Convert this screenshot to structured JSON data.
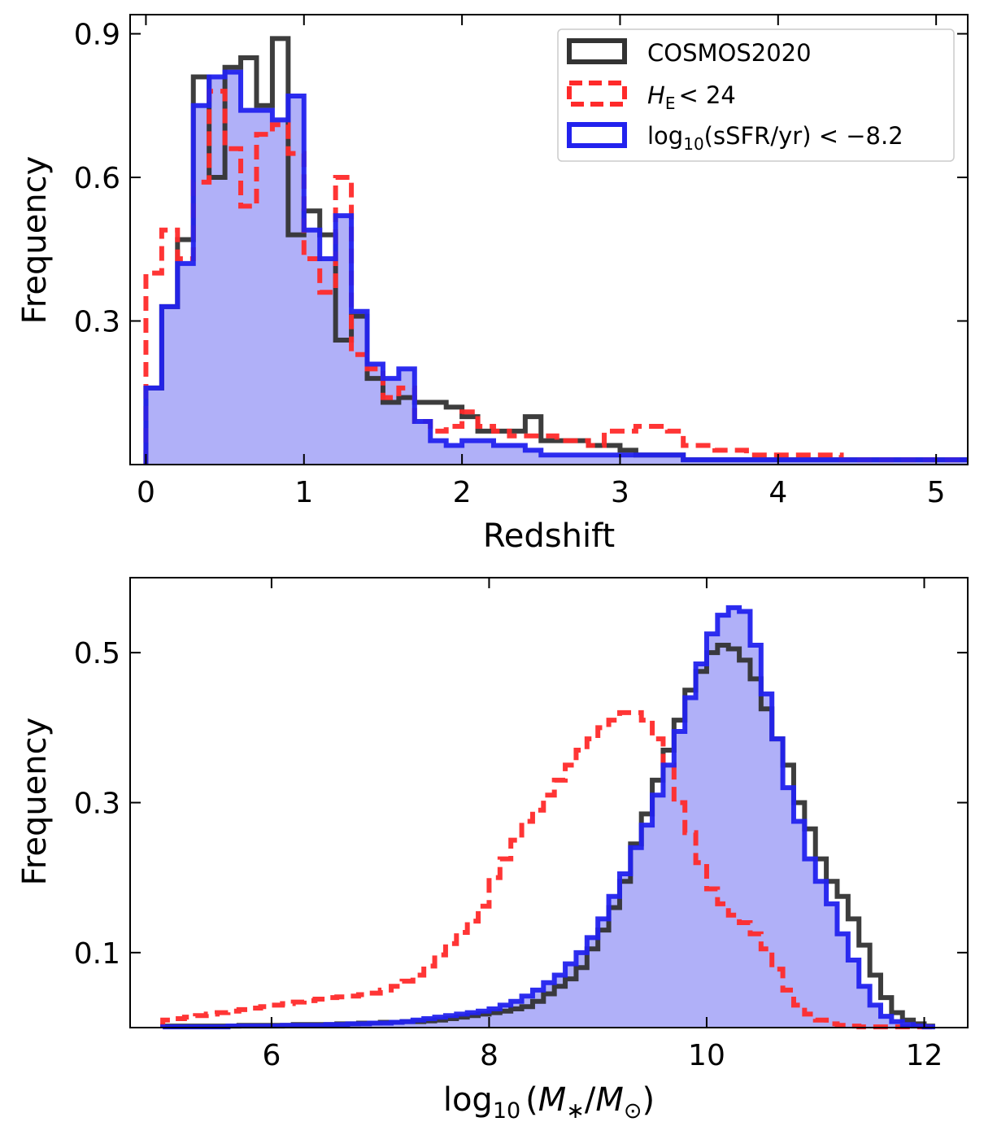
{
  "chart_data": [
    {
      "type": "histogram-step",
      "xlabel": "Redshift",
      "ylabel": "Frequency",
      "xlim": [
        -0.1,
        5.2
      ],
      "ylim": [
        0,
        0.94
      ],
      "xticks": [
        0,
        1,
        2,
        3,
        4,
        5
      ],
      "xtick_labels": [
        "0",
        "1",
        "2",
        "3",
        "4",
        "5"
      ],
      "yticks": [
        0.3,
        0.6,
        0.9
      ],
      "ytick_labels": [
        "0.3",
        "0.6",
        "0.9"
      ],
      "bin_width": 0.1,
      "bin_start": 0,
      "legend": {
        "placement": "top-right",
        "entries": [
          {
            "key": "cosmos",
            "label": "COSMOS2020"
          },
          {
            "key": "he",
            "label_main": "H",
            "label_sub": "E",
            "label_tail": "< 24"
          },
          {
            "key": "ssfr",
            "label_main": "log",
            "label_sub": "10",
            "label_tail": "(sSFR/yr) < −8.2"
          }
        ]
      },
      "series": [
        {
          "name": "COSMOS2020",
          "key": "cosmos",
          "color": "#333333",
          "style": "solid",
          "values": [
            0.16,
            0.33,
            0.47,
            0.81,
            0.6,
            0.83,
            0.85,
            0.75,
            0.89,
            0.48,
            0.53,
            0.48,
            0.26,
            0.31,
            0.18,
            0.13,
            0.14,
            0.13,
            0.13,
            0.12,
            0.1,
            0.07,
            0.07,
            0.07,
            0.1,
            0.05,
            0.05,
            0.05,
            0.04,
            0.04,
            0.03,
            0.02,
            0.02,
            0.02,
            0.01,
            0.01,
            0.01,
            0.01,
            0.01,
            0.01,
            0.01,
            0.01,
            0.01,
            0.01,
            0.01,
            0.01,
            0.01,
            0.01,
            0.01,
            0.01,
            0.01,
            0.01
          ]
        },
        {
          "name": "H_E < 24",
          "key": "he",
          "color": "#ff2a2a",
          "style": "dashed",
          "values": [
            0.4,
            0.49,
            0.43,
            0.59,
            0.78,
            0.66,
            0.54,
            0.69,
            0.71,
            0.65,
            0.43,
            0.36,
            0.6,
            0.23,
            0.2,
            0.14,
            0.16,
            0.09,
            0.07,
            0.08,
            0.11,
            0.08,
            0.07,
            0.06,
            0.06,
            0.06,
            0.05,
            0.05,
            0.04,
            0.07,
            0.07,
            0.08,
            0.08,
            0.07,
            0.04,
            0.04,
            0.03,
            0.03,
            0.02,
            0.02,
            0.02,
            0.02,
            0.02,
            0.02,
            0.01,
            0.01,
            0.01,
            0.01,
            0.01,
            0.01,
            0.01,
            0.01
          ]
        },
        {
          "name": "log10(sSFR/yr) < -8.2",
          "key": "ssfr",
          "color": "#2222ee",
          "style": "solid",
          "fill": "#b0b0f8",
          "values": [
            0.16,
            0.33,
            0.42,
            0.75,
            0.81,
            0.82,
            0.74,
            0.74,
            0.72,
            0.77,
            0.49,
            0.43,
            0.52,
            0.32,
            0.21,
            0.18,
            0.2,
            0.09,
            0.05,
            0.04,
            0.05,
            0.05,
            0.04,
            0.04,
            0.03,
            0.02,
            0.02,
            0.02,
            0.02,
            0.02,
            0.02,
            0.02,
            0.02,
            0.02,
            0.01,
            0.01,
            0.01,
            0.01,
            0.01,
            0.01,
            0.01,
            0.01,
            0.01,
            0.01,
            0.01,
            0.01,
            0.01,
            0.01,
            0.01,
            0.01,
            0.01,
            0.01
          ]
        }
      ]
    },
    {
      "type": "histogram-step",
      "xlabel_main": "log",
      "xlabel_sub": "10",
      "xlabel_paren_open": "(",
      "xlabel_m1": "M",
      "xlabel_star": "∗",
      "xlabel_slash": "/",
      "xlabel_m2": "M",
      "xlabel_sun": "⊙",
      "xlabel_paren_close": ")",
      "ylabel": "Frequency",
      "xlim": [
        4.7,
        12.4
      ],
      "ylim": [
        0,
        0.6
      ],
      "xticks": [
        6,
        8,
        10,
        12
      ],
      "xtick_labels": [
        "6",
        "8",
        "10",
        "12"
      ],
      "yticks": [
        0.1,
        0.3,
        0.5
      ],
      "ytick_labels": [
        "0.1",
        "0.3",
        "0.5"
      ],
      "bin_width": 0.1,
      "bin_start": 5.0,
      "series": [
        {
          "name": "COSMOS2020",
          "key": "cosmos",
          "color": "#333333",
          "style": "solid",
          "values": [
            0.002,
            0.002,
            0.002,
            0.002,
            0.002,
            0.002,
            0.002,
            0.003,
            0.003,
            0.003,
            0.003,
            0.003,
            0.004,
            0.004,
            0.004,
            0.004,
            0.005,
            0.005,
            0.006,
            0.006,
            0.007,
            0.007,
            0.008,
            0.008,
            0.009,
            0.01,
            0.012,
            0.014,
            0.016,
            0.018,
            0.02,
            0.022,
            0.025,
            0.028,
            0.035,
            0.045,
            0.055,
            0.065,
            0.08,
            0.105,
            0.13,
            0.16,
            0.195,
            0.245,
            0.285,
            0.33,
            0.37,
            0.41,
            0.45,
            0.475,
            0.5,
            0.51,
            0.505,
            0.49,
            0.465,
            0.425,
            0.385,
            0.35,
            0.3,
            0.265,
            0.225,
            0.195,
            0.175,
            0.145,
            0.11,
            0.07,
            0.04,
            0.02,
            0.01,
            0.005,
            0.002
          ]
        },
        {
          "name": "H_E < 24",
          "key": "he",
          "color": "#ff2a2a",
          "style": "dashed",
          "values": [
            0.01,
            0.012,
            0.014,
            0.016,
            0.018,
            0.02,
            0.022,
            0.024,
            0.026,
            0.028,
            0.03,
            0.032,
            0.034,
            0.036,
            0.038,
            0.04,
            0.041,
            0.042,
            0.044,
            0.046,
            0.05,
            0.055,
            0.062,
            0.07,
            0.082,
            0.097,
            0.112,
            0.127,
            0.142,
            0.162,
            0.2,
            0.225,
            0.25,
            0.275,
            0.29,
            0.31,
            0.33,
            0.35,
            0.37,
            0.385,
            0.4,
            0.41,
            0.42,
            0.42,
            0.41,
            0.385,
            0.35,
            0.3,
            0.26,
            0.22,
            0.185,
            0.165,
            0.15,
            0.14,
            0.125,
            0.105,
            0.078,
            0.05,
            0.03,
            0.018,
            0.01,
            0.005,
            0.003,
            0.002,
            0.001,
            0.001,
            0.001,
            0.001,
            0.001,
            0.001,
            0.001
          ]
        },
        {
          "name": "log10(sSFR/yr) < -8.2",
          "key": "ssfr",
          "color": "#2222ee",
          "style": "solid",
          "fill": "#b0b0f8",
          "values": [
            0.001,
            0.001,
            0.001,
            0.001,
            0.001,
            0.001,
            0.002,
            0.002,
            0.002,
            0.002,
            0.002,
            0.003,
            0.003,
            0.003,
            0.003,
            0.004,
            0.004,
            0.005,
            0.005,
            0.006,
            0.006,
            0.007,
            0.008,
            0.01,
            0.012,
            0.014,
            0.016,
            0.018,
            0.02,
            0.022,
            0.025,
            0.03,
            0.035,
            0.042,
            0.05,
            0.06,
            0.07,
            0.085,
            0.1,
            0.12,
            0.145,
            0.175,
            0.205,
            0.24,
            0.27,
            0.31,
            0.35,
            0.395,
            0.44,
            0.485,
            0.525,
            0.55,
            0.56,
            0.555,
            0.51,
            0.445,
            0.385,
            0.32,
            0.275,
            0.225,
            0.195,
            0.165,
            0.125,
            0.09,
            0.055,
            0.03,
            0.015,
            0.008,
            0.004,
            0.002,
            0.001
          ]
        }
      ]
    }
  ]
}
